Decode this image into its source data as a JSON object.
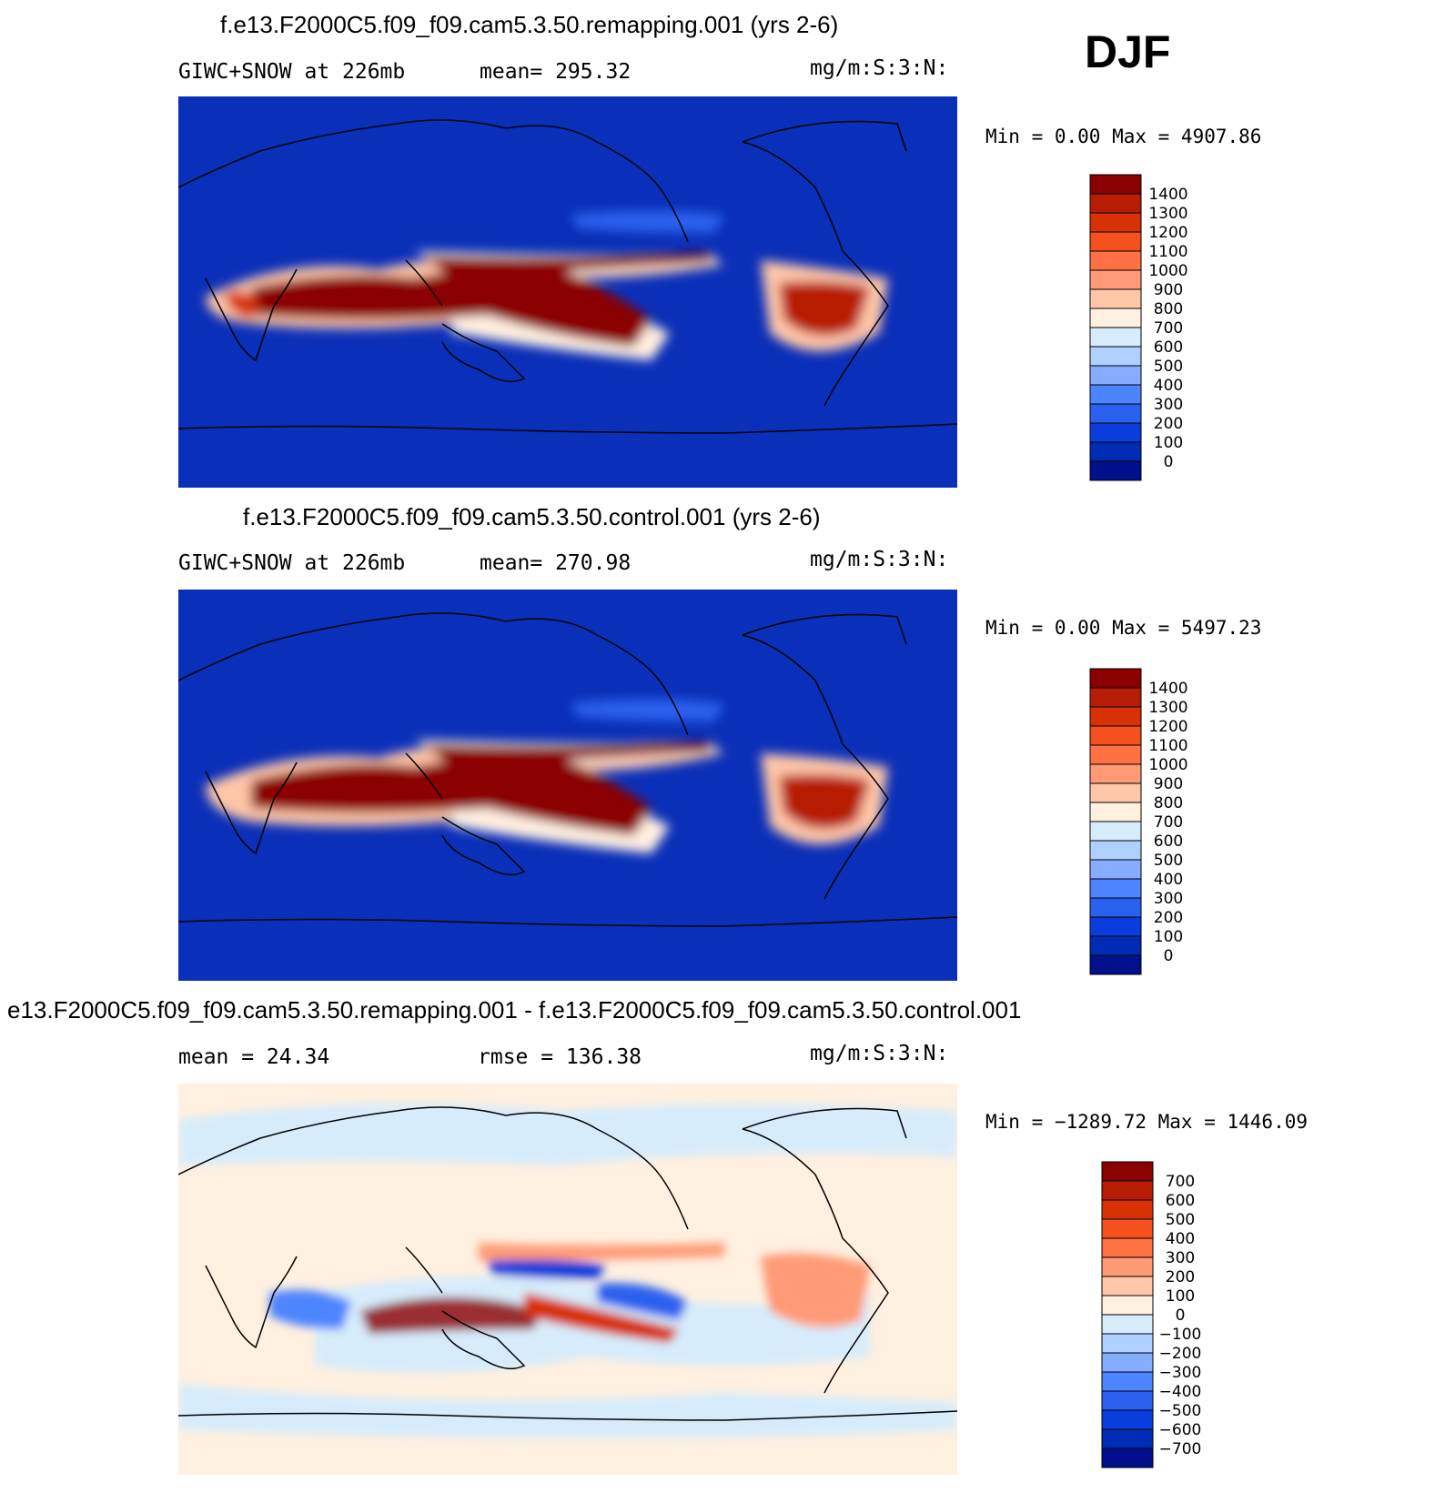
{
  "season": "DJF",
  "panels": [
    {
      "title": "f.e13.F2000C5.f09_f09.cam5.3.50.remapping.001 (yrs 2-6)",
      "left_label": "GIWC+SNOW at 226mb",
      "mean_label": "mean= 295.32",
      "units": "mg/m:S:3:N:",
      "minmax": "Min =    0.00 Max = 4907.86",
      "colorbar": {
        "labels": [
          "1400",
          "1300",
          "1200",
          "1100",
          "1000",
          "900",
          "800",
          "700",
          "600",
          "500",
          "400",
          "300",
          "200",
          "100",
          "0"
        ],
        "colors": [
          "#8b0000",
          "#b71c04",
          "#d83104",
          "#f4511e",
          "#ff7043",
          "#ff9a76",
          "#ffc6a8",
          "#fff0e0",
          "#d6ecfb",
          "#b0d0ff",
          "#86acff",
          "#4d84ff",
          "#2a60ee",
          "#0a3edc",
          "#002bb4",
          "#000f8c"
        ]
      }
    },
    {
      "title": "f.e13.F2000C5.f09_f09.cam5.3.50.control.001 (yrs 2-6)",
      "left_label": "GIWC+SNOW at 226mb",
      "mean_label": "mean= 270.98",
      "units": "mg/m:S:3:N:",
      "minmax": "Min =    0.00 Max = 5497.23",
      "colorbar": {
        "labels": [
          "1400",
          "1300",
          "1200",
          "1100",
          "1000",
          "900",
          "800",
          "700",
          "600",
          "500",
          "400",
          "300",
          "200",
          "100",
          "0"
        ],
        "colors": [
          "#8b0000",
          "#b71c04",
          "#d83104",
          "#f4511e",
          "#ff7043",
          "#ff9a76",
          "#ffc6a8",
          "#fff0e0",
          "#d6ecfb",
          "#b0d0ff",
          "#86acff",
          "#4d84ff",
          "#2a60ee",
          "#0a3edc",
          "#002bb4",
          "#000f8c"
        ]
      }
    },
    {
      "title": "e13.F2000C5.f09_f09.cam5.3.50.remapping.001 - f.e13.F2000C5.f09_f09.cam5.3.50.control.001",
      "left_label": "mean =   24.34",
      "mean_label": "rmse =  136.38",
      "units": "mg/m:S:3:N:",
      "minmax": "Min = −1289.72 Max = 1446.09",
      "colorbar": {
        "labels": [
          "700",
          "600",
          "500",
          "400",
          "300",
          "200",
          "100",
          "0",
          "−100",
          "−200",
          "−300",
          "−400",
          "−500",
          "−600",
          "−700"
        ],
        "colors": [
          "#8b0000",
          "#b71c04",
          "#d83104",
          "#f4511e",
          "#ff7043",
          "#ff9a76",
          "#ffc6a8",
          "#fff0e0",
          "#d6ecfb",
          "#b0d0ff",
          "#86acff",
          "#4d84ff",
          "#2a60ee",
          "#0a3edc",
          "#002bb4",
          "#000f8c"
        ]
      }
    }
  ],
  "chart_data": [
    {
      "type": "heatmap",
      "title": "f.e13.F2000C5.f09_f09.cam5.3.50.remapping.001 (yrs 2-6)",
      "field": "GIWC+SNOW at 226mb",
      "units": "mg/m:S:3:N:",
      "mean": 295.32,
      "min": 0.0,
      "max": 4907.86,
      "levels": [
        0,
        100,
        200,
        300,
        400,
        500,
        600,
        700,
        800,
        900,
        1000,
        1100,
        1200,
        1300,
        1400
      ]
    },
    {
      "type": "heatmap",
      "title": "f.e13.F2000C5.f09_f09.cam5.3.50.control.001 (yrs 2-6)",
      "field": "GIWC+SNOW at 226mb",
      "units": "mg/m:S:3:N:",
      "mean": 270.98,
      "min": 0.0,
      "max": 5497.23,
      "levels": [
        0,
        100,
        200,
        300,
        400,
        500,
        600,
        700,
        800,
        900,
        1000,
        1100,
        1200,
        1300,
        1400
      ]
    },
    {
      "type": "heatmap",
      "title": "e13.F2000C5.f09_f09.cam5.3.50.remapping.001 - f.e13.F2000C5.f09_f09.cam5.3.50.control.001",
      "units": "mg/m:S:3:N:",
      "mean": 24.34,
      "rmse": 136.38,
      "min": -1289.72,
      "max": 1446.09,
      "levels": [
        -700,
        -600,
        -500,
        -400,
        -300,
        -200,
        -100,
        0,
        100,
        200,
        300,
        400,
        500,
        600,
        700
      ]
    }
  ]
}
